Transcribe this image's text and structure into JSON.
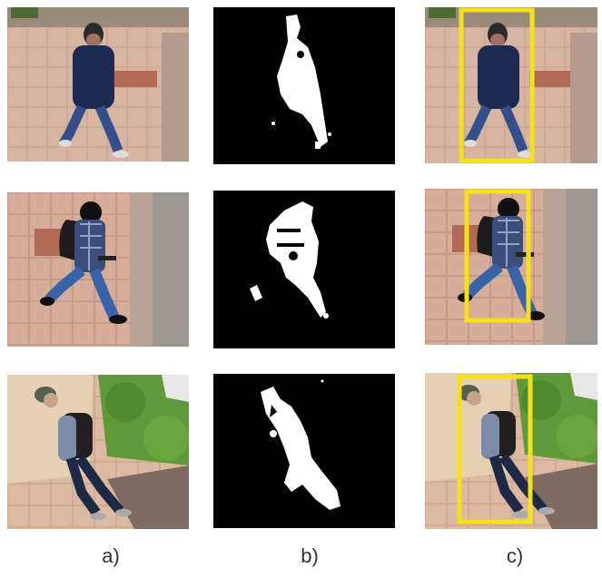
{
  "figure": {
    "captions": [
      "a)",
      "b)",
      "c)"
    ],
    "colors": {
      "background": "#ffffff",
      "mask_background": "#000000",
      "mask_foreground": "#ffffff",
      "bounding_box": "#f5e11a",
      "pavement": "#c9a08e",
      "grass": "#5f9a3a"
    },
    "rows": [
      {
        "subject": "person-dark-shirt",
        "columns": [
          "original",
          "foreground-mask",
          "detection-box"
        ]
      },
      {
        "subject": "person-plaid-backpack",
        "columns": [
          "original",
          "foreground-mask",
          "detection-box"
        ]
      },
      {
        "subject": "person-cap-backpack",
        "columns": [
          "original",
          "foreground-mask",
          "detection-box"
        ]
      }
    ]
  }
}
